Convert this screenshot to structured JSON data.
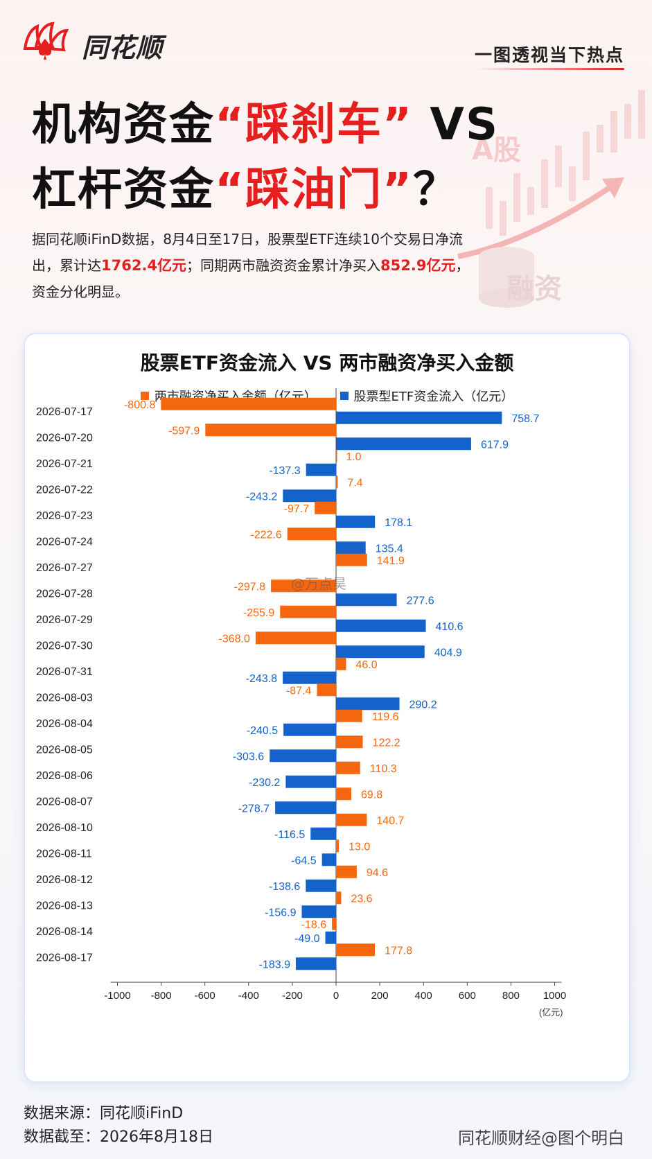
{
  "header": {
    "logo_text": "同花顺",
    "slogan": "一图透视当下热点"
  },
  "title": {
    "line1_pre": "机构资金",
    "line1_red": "“踩刹车”",
    "line1_post": " VS",
    "line2_pre": "杠杆资金",
    "line2_red": "“踩油门”",
    "line2_post": "？"
  },
  "intro": {
    "part1": "据同花顺iFinD数据，8月4日至17日，股票型ETF连续10个交易日净流出，累计达",
    "hl1": "1762.4亿元",
    "part2": "；同期两市融资资金累计净买入",
    "hl2": "852.9亿元",
    "part3": "，资金分化明显。"
  },
  "decor": {
    "a_share": "A股",
    "margin": "融资"
  },
  "watermark": "@万点昊",
  "colors": {
    "orange": "#f5670f",
    "blue": "#1463cc",
    "red": "#e51e1e"
  },
  "chart_data": {
    "type": "bar",
    "orientation": "horizontal",
    "title": "股票ETF资金流入 VS 两市融资净买入金额",
    "x_unit": "(亿元)",
    "xlim": [
      -1000,
      1000
    ],
    "x_ticks": [
      -1000,
      -800,
      -600,
      -400,
      -200,
      0,
      200,
      400,
      600,
      800,
      1000
    ],
    "legend_position": "top",
    "categories": [
      "2026-07-17",
      "2026-07-20",
      "2026-07-21",
      "2026-07-22",
      "2026-07-23",
      "2026-07-24",
      "2026-07-27",
      "2026-07-28",
      "2026-07-29",
      "2026-07-30",
      "2026-07-31",
      "2026-08-03",
      "2026-08-04",
      "2026-08-05",
      "2026-08-06",
      "2026-08-07",
      "2026-08-10",
      "2026-08-11",
      "2026-08-12",
      "2026-08-13",
      "2026-08-14",
      "2026-08-17"
    ],
    "series": [
      {
        "name": "两市融资净买入金额（亿元）",
        "color": "#f5670f",
        "values": [
          -800.8,
          -597.9,
          1.0,
          7.4,
          -97.7,
          -222.6,
          141.9,
          -297.8,
          -255.9,
          -368.0,
          46.0,
          -87.4,
          119.6,
          122.2,
          110.3,
          69.8,
          140.7,
          13.0,
          94.6,
          23.6,
          -18.6,
          177.8
        ],
        "labels": [
          "-800.8",
          "-597.9",
          "1.0",
          "7.4",
          "-97.7",
          "-222.6",
          "141.9",
          "-297.8",
          "-255.9",
          "-368.0",
          "46.0",
          "-87.4",
          "119.6",
          "122.2",
          "110.3",
          "69.8",
          "140.7",
          "13.0",
          "94.6",
          "23.6",
          "-18.6",
          "177.8"
        ]
      },
      {
        "name": "股票型ETF资金流入（亿元）",
        "color": "#1463cc",
        "values": [
          758.7,
          617.9,
          -137.3,
          -243.2,
          178.1,
          135.4,
          null,
          277.6,
          410.6,
          404.9,
          -243.8,
          290.2,
          -240.5,
          -303.6,
          -230.2,
          -278.7,
          -116.5,
          -64.5,
          -138.6,
          -156.9,
          -49.0,
          -183.9
        ],
        "labels": [
          "758.7",
          "617.9",
          "-137.3",
          "-243.2",
          "178.1",
          "135.4",
          "",
          "277.6",
          "410.6",
          "404.9",
          "-243.8",
          "290.2",
          "-240.5",
          "-303.6",
          "-230.2",
          "-278.7",
          "-116.5",
          "-64.5",
          "-138.6",
          "-156.9",
          "-49.0",
          "-183.9"
        ]
      }
    ]
  },
  "footer": {
    "source": "数据来源：同花顺iFinD",
    "cutoff": "数据截至：2026年8月18日",
    "credit": "同花顺财经@图个明白"
  }
}
